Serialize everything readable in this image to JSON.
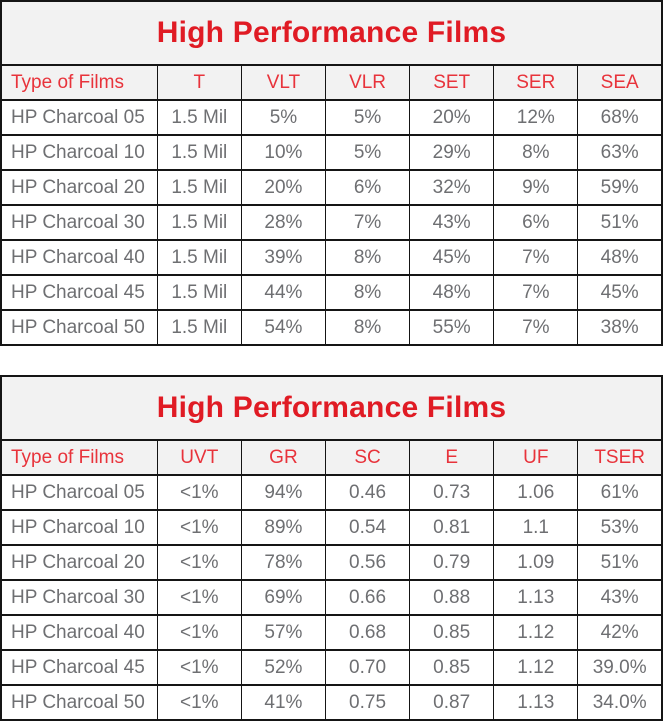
{
  "colors": {
    "accent_red": "#e01b24",
    "body_text_gray": "#6e6f72",
    "header_background": "#f2f2f2",
    "border": "#151515"
  },
  "tables": [
    {
      "title": "High Performance Films",
      "columns": [
        "Type of Films",
        "T",
        "VLT",
        "VLR",
        "SET",
        "SER",
        "SEA"
      ],
      "rows": [
        [
          "HP Charcoal 05",
          "1.5 Mil",
          "5%",
          "5%",
          "20%",
          "12%",
          "68%"
        ],
        [
          "HP Charcoal 10",
          "1.5 Mil",
          "10%",
          "5%",
          "29%",
          "8%",
          "63%"
        ],
        [
          "HP Charcoal 20",
          "1.5 Mil",
          "20%",
          "6%",
          "32%",
          "9%",
          "59%"
        ],
        [
          "HP Charcoal 30",
          "1.5 Mil",
          "28%",
          "7%",
          "43%",
          "6%",
          "51%"
        ],
        [
          "HP Charcoal 40",
          "1.5 Mil",
          "39%",
          "8%",
          "45%",
          "7%",
          "48%"
        ],
        [
          "HP Charcoal 45",
          "1.5 Mil",
          "44%",
          "8%",
          "48%",
          "7%",
          "45%"
        ],
        [
          "HP Charcoal 50",
          "1.5 Mil",
          "54%",
          "8%",
          "55%",
          "7%",
          "38%"
        ]
      ]
    },
    {
      "title": "High Performance Films",
      "columns": [
        "Type of Films",
        "UVT",
        "GR",
        "SC",
        "E",
        "UF",
        "TSER"
      ],
      "rows": [
        [
          "HP Charcoal 05",
          "<1%",
          "94%",
          "0.46",
          "0.73",
          "1.06",
          "61%"
        ],
        [
          "HP Charcoal 10",
          "<1%",
          "89%",
          "0.54",
          "0.81",
          "1.1",
          "53%"
        ],
        [
          "HP Charcoal 20",
          "<1%",
          "78%",
          "0.56",
          "0.79",
          "1.09",
          "51%"
        ],
        [
          "HP Charcoal 30",
          "<1%",
          "69%",
          "0.66",
          "0.88",
          "1.13",
          "43%"
        ],
        [
          "HP Charcoal 40",
          "<1%",
          "57%",
          "0.68",
          "0.85",
          "1.12",
          "42%"
        ],
        [
          "HP Charcoal 45",
          "<1%",
          "52%",
          "0.70",
          "0.85",
          "1.12",
          "39.0%"
        ],
        [
          "HP Charcoal 50",
          "<1%",
          "41%",
          "0.75",
          "0.87",
          "1.13",
          "34.0%"
        ]
      ]
    }
  ]
}
